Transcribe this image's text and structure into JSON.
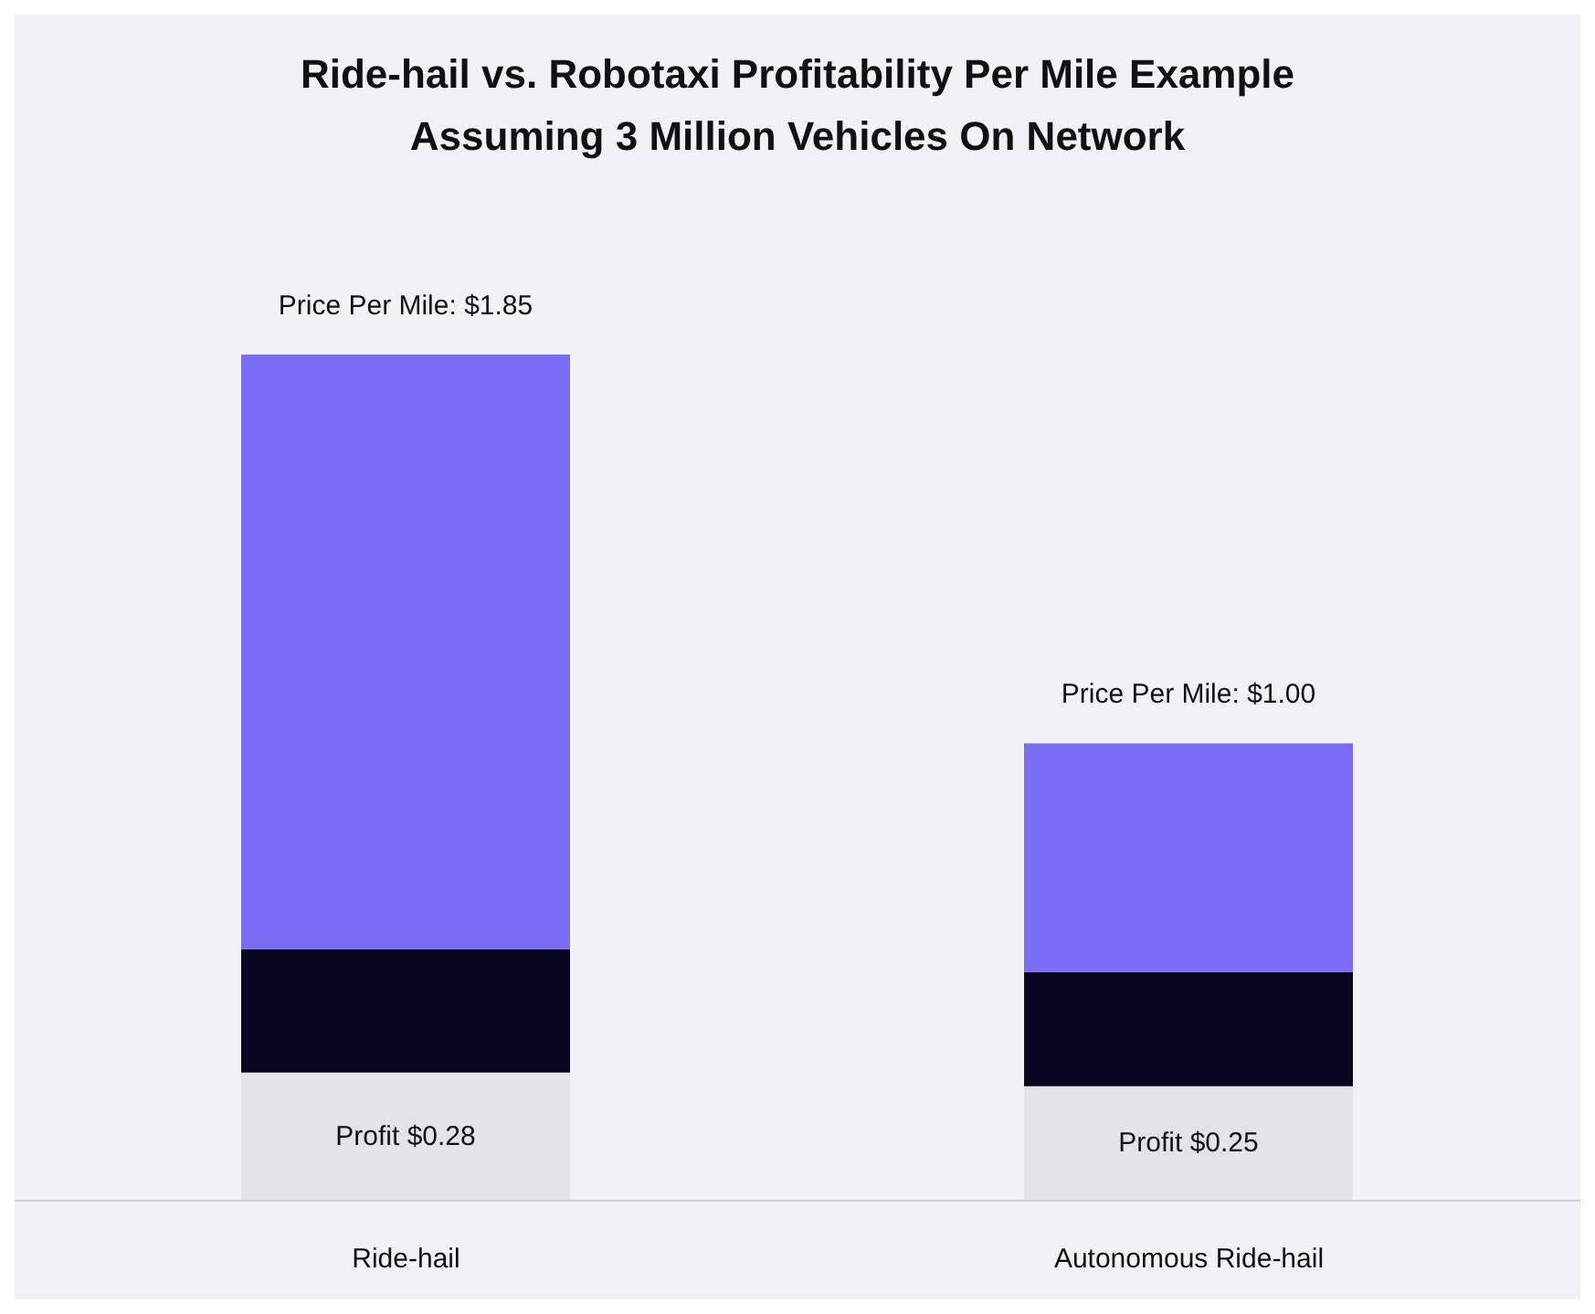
{
  "chart_data": {
    "type": "bar",
    "title": "Ride-hail vs. Robotaxi Profitability Per Mile Example\nAssuming 3 Million Vehicles On Network",
    "categories": [
      "Ride-hail",
      "Autonomous Ride-hail"
    ],
    "stacked": true,
    "tick_labels": "x",
    "legend": false,
    "series": [
      {
        "color": "#e4e3e9",
        "values": [
          0.28,
          0.25
        ],
        "value_labels": [
          "Profit $0.28",
          "Profit $0.25"
        ]
      },
      {
        "color": "#0b0620",
        "values": [
          0.27,
          0.25
        ]
      },
      {
        "color": "#7b6cf6",
        "values": [
          1.3,
          0.5
        ]
      }
    ],
    "totals": [
      "Price Per Mile: $1.85",
      "Price Per Mile: $1.00"
    ]
  }
}
